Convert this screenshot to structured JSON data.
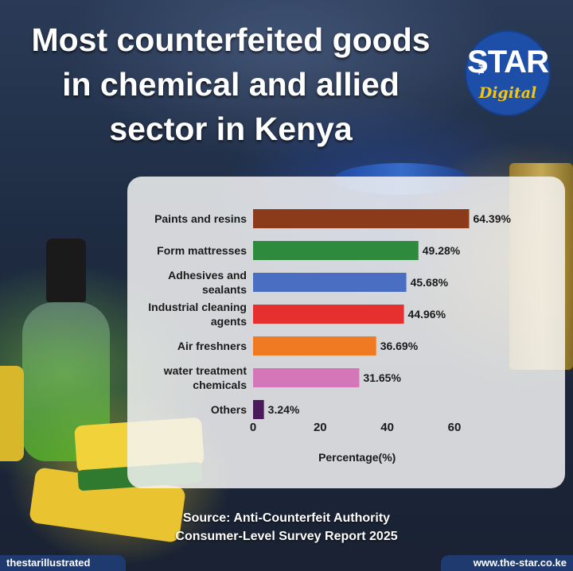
{
  "title": "Most counterfeited goods in chemical and allied sector in Kenya",
  "logo": {
    "the": "THE",
    "star": "STAR",
    "digital": "Digital"
  },
  "source_line1": "Source: Anti-Counterfeit Authority",
  "source_line2": "Consumer-Level Survey Report 2025",
  "footer": {
    "left": "thestarillustrated",
    "right": "www.the-star.co.ke"
  },
  "chart_data": {
    "type": "bar",
    "orientation": "horizontal",
    "categories": [
      [
        "Paints and resins"
      ],
      [
        "Form mattresses"
      ],
      [
        "Adhesives and",
        "sealants"
      ],
      [
        "Industrial cleaning",
        "agents"
      ],
      [
        "Air freshners"
      ],
      [
        "water treatment",
        "chemicals"
      ],
      [
        "Others"
      ]
    ],
    "values": [
      64.39,
      49.28,
      45.68,
      44.96,
      36.69,
      31.65,
      3.24
    ],
    "value_labels": [
      "64.39%",
      "49.28%",
      "45.68%",
      "44.96%",
      "36.69%",
      "31.65%",
      "3.24%"
    ],
    "colors": [
      "#8b3a1a",
      "#2e8b3e",
      "#4a6fc2",
      "#e63030",
      "#f07a22",
      "#d576b8",
      "#4b1a5a"
    ],
    "xlabel": "Percentage(%)",
    "xticks": [
      0,
      20,
      40,
      60
    ],
    "xlim": [
      0,
      75
    ],
    "grid": false
  }
}
